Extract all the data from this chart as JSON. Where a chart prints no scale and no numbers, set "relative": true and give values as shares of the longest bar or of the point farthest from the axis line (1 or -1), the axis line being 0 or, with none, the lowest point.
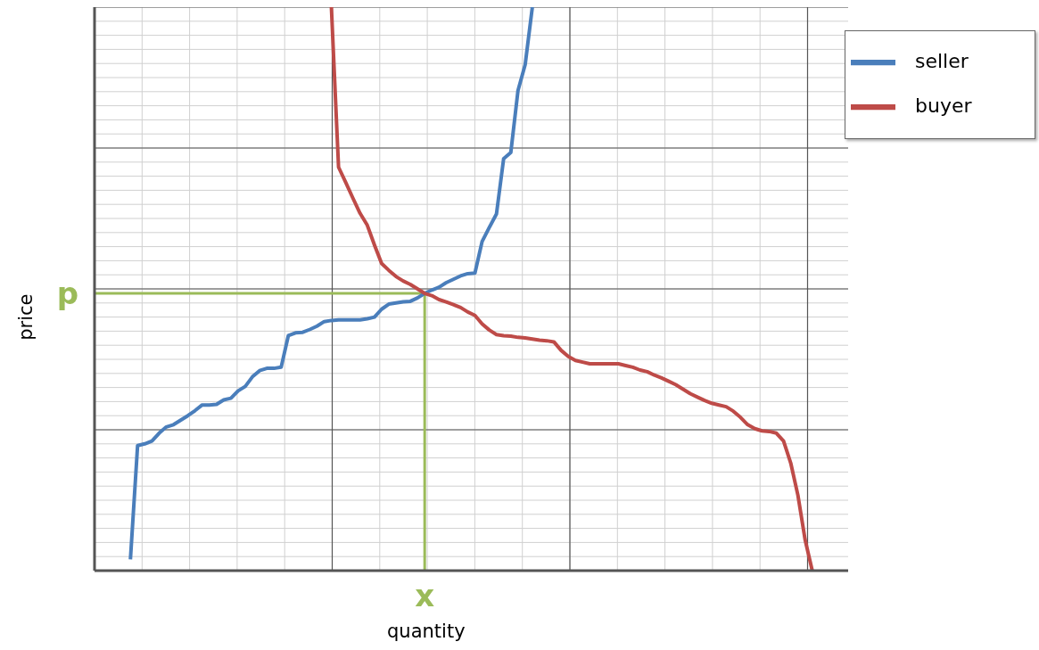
{
  "chart_data": {
    "type": "line",
    "relative": true,
    "xlabel": "quantity",
    "ylabel": "price",
    "legend": "top right",
    "grid": true,
    "categories": [
      null,
      null,
      null,
      null,
      null,
      null,
      null,
      null,
      null,
      null,
      null,
      null,
      null,
      null,
      null,
      null,
      null,
      null,
      null,
      null,
      null,
      null,
      null,
      null,
      null,
      null,
      null,
      null,
      null,
      null,
      null,
      null,
      null,
      null,
      null,
      null,
      null,
      null,
      null,
      null,
      null,
      null,
      null,
      null,
      null,
      null,
      null,
      null,
      null,
      null,
      null,
      null,
      null,
      null,
      null,
      null,
      null,
      null,
      null,
      null,
      null,
      null,
      null,
      null,
      null,
      null,
      null,
      null,
      null,
      null,
      null,
      null,
      null,
      null,
      null,
      null,
      null,
      null,
      null,
      null,
      null,
      null,
      null,
      null,
      null,
      null,
      null,
      null,
      null,
      null,
      null,
      null,
      null,
      null,
      null,
      null,
      null,
      null,
      null,
      null,
      null,
      null,
      null,
      null,
      null,
      null
    ],
    "series": [
      {
        "name": "seller",
        "color": "#4a7ebb",
        "values": [
          null,
          null,
          null,
          null,
          null,
          0.02,
          0.222,
          0.225,
          0.23,
          0.244,
          0.255,
          0.259,
          0.267,
          0.275,
          0.284,
          0.294,
          0.294,
          0.295,
          0.303,
          0.306,
          0.319,
          0.327,
          0.344,
          0.355,
          0.359,
          0.359,
          0.361,
          0.417,
          0.422,
          0.423,
          0.428,
          0.434,
          0.442,
          0.444,
          0.445,
          0.445,
          0.445,
          0.445,
          0.447,
          0.45,
          0.464,
          0.473,
          0.475,
          0.477,
          0.478,
          0.484,
          0.492,
          0.498,
          0.503,
          0.511,
          0.517,
          0.523,
          0.527,
          0.528,
          0.584,
          0.609,
          0.633,
          0.731,
          0.742,
          0.852,
          0.898,
          1.0,
          null,
          null,
          null,
          null,
          null,
          null,
          null,
          null,
          null,
          null,
          null,
          null,
          null,
          null,
          null,
          null,
          null,
          null,
          null,
          null,
          null,
          null,
          null,
          null,
          null,
          null,
          null,
          null,
          null,
          null,
          null,
          null,
          null,
          null,
          null,
          null,
          null,
          null,
          null,
          null,
          null,
          null,
          null,
          null
        ]
      },
      {
        "name": "buyer",
        "color": "#be4b48",
        "values": [
          null,
          null,
          null,
          null,
          null,
          null,
          null,
          null,
          null,
          null,
          null,
          null,
          null,
          null,
          null,
          null,
          null,
          null,
          null,
          null,
          null,
          null,
          null,
          null,
          null,
          null,
          null,
          null,
          null,
          null,
          null,
          null,
          null,
          1.0,
          0.716,
          0.689,
          0.661,
          0.634,
          0.613,
          0.578,
          0.545,
          0.533,
          0.522,
          0.514,
          0.508,
          0.5,
          0.492,
          0.488,
          0.481,
          0.477,
          0.472,
          0.467,
          0.459,
          0.453,
          0.438,
          0.427,
          0.419,
          0.417,
          0.416,
          0.414,
          0.413,
          0.411,
          0.409,
          0.408,
          0.406,
          0.391,
          0.38,
          0.373,
          0.37,
          0.367,
          0.367,
          0.367,
          0.367,
          0.367,
          0.364,
          0.361,
          0.356,
          0.353,
          0.347,
          0.342,
          0.336,
          0.33,
          0.322,
          0.314,
          0.308,
          0.302,
          0.297,
          0.294,
          0.291,
          0.283,
          0.272,
          0.259,
          0.252,
          0.248,
          0.247,
          0.244,
          0.23,
          0.191,
          0.134,
          0.055,
          0.0,
          null,
          null,
          null,
          null,
          null
        ]
      }
    ],
    "annotations": [
      "x"
    ],
    "ref_lines": [
      {
        "axis": "y",
        "value": 0.492,
        "label": "p",
        "color": "#9bbb59"
      }
    ]
  }
}
